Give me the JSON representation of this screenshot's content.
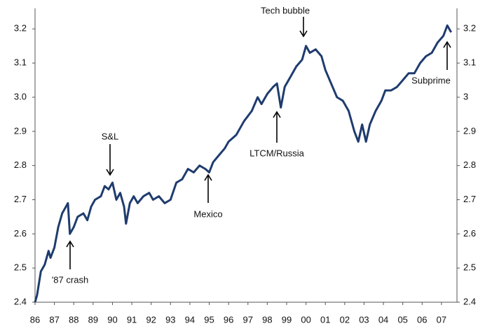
{
  "chart_data": {
    "type": "line",
    "x": [
      1986.0,
      1986.1,
      1986.3,
      1986.5,
      1986.7,
      1986.8,
      1987.0,
      1987.2,
      1987.4,
      1987.6,
      1987.7,
      1987.8,
      1988.0,
      1988.2,
      1988.5,
      1988.7,
      1988.9,
      1989.1,
      1989.4,
      1989.6,
      1989.8,
      1990.0,
      1990.2,
      1990.4,
      1990.6,
      1990.7,
      1990.9,
      1991.1,
      1991.3,
      1991.6,
      1991.9,
      1992.1,
      1992.4,
      1992.7,
      1993.0,
      1993.3,
      1993.6,
      1993.9,
      1994.2,
      1994.5,
      1994.8,
      1995.0,
      1995.2,
      1995.5,
      1995.8,
      1996.0,
      1996.4,
      1996.8,
      1997.2,
      1997.5,
      1997.7,
      1998.0,
      1998.3,
      1998.5,
      1998.7,
      1998.9,
      1999.2,
      1999.5,
      1999.8,
      2000.0,
      2000.2,
      2000.5,
      2000.8,
      2001.0,
      2001.3,
      2001.6,
      2001.9,
      2002.2,
      2002.5,
      2002.7,
      2002.9,
      2003.1,
      2003.3,
      2003.6,
      2003.9,
      2004.1,
      2004.4,
      2004.7,
      2005.0,
      2005.3,
      2005.6,
      2005.9,
      2006.2,
      2006.5,
      2006.8,
      2007.1,
      2007.3,
      2007.5
    ],
    "series": [
      {
        "color": "#1f3c6e",
        "values": [
          2.4,
          2.42,
          2.49,
          2.51,
          2.55,
          2.53,
          2.56,
          2.62,
          2.66,
          2.68,
          2.69,
          2.6,
          2.62,
          2.65,
          2.66,
          2.64,
          2.68,
          2.7,
          2.71,
          2.74,
          2.73,
          2.75,
          2.7,
          2.72,
          2.68,
          2.63,
          2.69,
          2.71,
          2.69,
          2.71,
          2.72,
          2.7,
          2.71,
          2.69,
          2.7,
          2.75,
          2.76,
          2.79,
          2.78,
          2.8,
          2.79,
          2.78,
          2.81,
          2.83,
          2.85,
          2.87,
          2.89,
          2.93,
          2.96,
          3.0,
          2.98,
          3.01,
          3.03,
          3.04,
          2.97,
          3.03,
          3.06,
          3.09,
          3.11,
          3.15,
          3.13,
          3.14,
          3.12,
          3.08,
          3.04,
          3.0,
          2.99,
          2.96,
          2.9,
          2.87,
          2.92,
          2.87,
          2.92,
          2.96,
          2.99,
          3.02,
          3.02,
          3.03,
          3.05,
          3.07,
          3.07,
          3.1,
          3.12,
          3.13,
          3.16,
          3.18,
          3.21,
          3.19
        ]
      }
    ],
    "xlim": [
      1986,
      2007.8
    ],
    "xticks": [
      {
        "value": 1986,
        "label": "86"
      },
      {
        "value": 1987,
        "label": "87"
      },
      {
        "value": 1988,
        "label": "88"
      },
      {
        "value": 1989,
        "label": "89"
      },
      {
        "value": 1990,
        "label": "90"
      },
      {
        "value": 1991,
        "label": "91"
      },
      {
        "value": 1992,
        "label": "92"
      },
      {
        "value": 1993,
        "label": "93"
      },
      {
        "value": 1994,
        "label": "94"
      },
      {
        "value": 1995,
        "label": "95"
      },
      {
        "value": 1996,
        "label": "96"
      },
      {
        "value": 1997,
        "label": "97"
      },
      {
        "value": 1998,
        "label": "98"
      },
      {
        "value": 1999,
        "label": "99"
      },
      {
        "value": 2000,
        "label": "00"
      },
      {
        "value": 2001,
        "label": "01"
      },
      {
        "value": 2002,
        "label": "02"
      },
      {
        "value": 2003,
        "label": "03"
      },
      {
        "value": 2004,
        "label": "04"
      },
      {
        "value": 2005,
        "label": "05"
      },
      {
        "value": 2006,
        "label": "06"
      },
      {
        "value": 2007,
        "label": "07"
      }
    ],
    "ylim": [
      2.4,
      3.26
    ],
    "yticks": [
      2.4,
      2.5,
      2.6,
      2.7,
      2.8,
      2.9,
      {
        "value": 3,
        "label": "3.0"
      },
      3.1,
      3.2
    ],
    "y2lim": [
      2.4,
      3.26
    ],
    "y2ticks": [
      2.4,
      2.5,
      2.6,
      2.7,
      2.8,
      2.9,
      3,
      3.1,
      3.2
    ],
    "annotations": [
      "Tech bubble",
      "S&L",
      "LTCM/Russia",
      "Mexico",
      "'87 crash",
      "Subprime"
    ]
  }
}
